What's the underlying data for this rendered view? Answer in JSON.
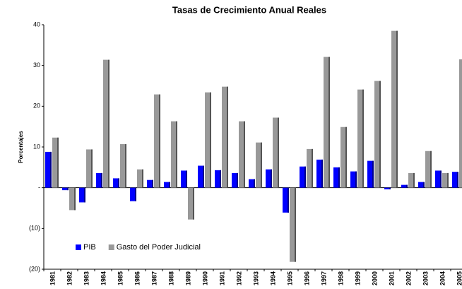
{
  "chart_data": {
    "type": "bar",
    "title": "Tasas de Crecimiento Anual Reales",
    "y_label": "Porcentajes",
    "categories": [
      "1981",
      "1982",
      "1983",
      "1984",
      "1985",
      "1986",
      "1987",
      "1988",
      "1989",
      "1990",
      "1991",
      "1992",
      "1993",
      "1994",
      "1995",
      "1996",
      "1997",
      "1998",
      "1999",
      "2000",
      "2001",
      "2002",
      "2003",
      "2004",
      "2005"
    ],
    "series": [
      {
        "name": "PIB",
        "color": "#0000ff",
        "values": [
          8.8,
          -0.6,
          -3.6,
          3.6,
          2.3,
          -3.3,
          1.9,
          1.4,
          4.2,
          5.4,
          4.3,
          3.6,
          2.1,
          4.5,
          -6.1,
          5.2,
          6.9,
          5.0,
          4.0,
          6.6,
          -0.4,
          0.7,
          1.4,
          4.2,
          3.9
        ]
      },
      {
        "name": "Gasto del Poder Judicial",
        "color": "#999999",
        "values": [
          12.3,
          -5.5,
          9.4,
          31.4,
          10.7,
          4.5,
          22.9,
          16.3,
          -7.8,
          23.4,
          24.8,
          16.3,
          11.1,
          17.2,
          -18.2,
          9.5,
          32.1,
          14.9,
          24.1,
          26.2,
          38.5,
          3.6,
          9.0,
          3.6,
          31.5
        ]
      }
    ],
    "ylim": [
      -20,
      40
    ],
    "yticks": [
      {
        "value": -20,
        "label": "(20)"
      },
      {
        "value": -10,
        "label": "(10)"
      },
      {
        "value": 0,
        "label": "-"
      },
      10,
      20,
      30,
      40
    ],
    "grid": false,
    "legend": "lower left"
  }
}
